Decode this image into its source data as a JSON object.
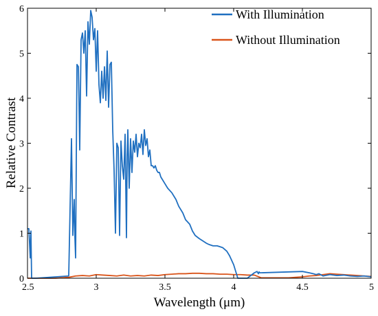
{
  "chart_data": {
    "type": "line",
    "title": "",
    "xlabel": "Wavelength (μm)",
    "ylabel": "Relative Contrast",
    "xlim": [
      2.5,
      5
    ],
    "ylim": [
      0,
      6
    ],
    "x_ticks": [
      "2.5",
      "3",
      "3.5",
      "4",
      "4.5",
      "5"
    ],
    "y_ticks": [
      "0",
      "1",
      "2",
      "3",
      "4",
      "5",
      "6"
    ],
    "grid": false,
    "legend_position": "top-right",
    "series": [
      {
        "name": "With Illumination",
        "color": "#1f6fc0",
        "x": [
          2.5,
          2.51,
          2.52,
          2.525,
          2.53,
          2.54,
          2.55,
          2.56,
          2.8,
          2.82,
          2.83,
          2.84,
          2.845,
          2.85,
          2.86,
          2.87,
          2.875,
          2.88,
          2.89,
          2.9,
          2.91,
          2.92,
          2.93,
          2.94,
          2.95,
          2.96,
          2.97,
          2.98,
          2.99,
          3.0,
          3.01,
          3.02,
          3.03,
          3.04,
          3.05,
          3.06,
          3.07,
          3.08,
          3.09,
          3.1,
          3.11,
          3.12,
          3.13,
          3.14,
          3.15,
          3.16,
          3.17,
          3.18,
          3.19,
          3.2,
          3.21,
          3.22,
          3.225,
          3.23,
          3.24,
          3.25,
          3.26,
          3.27,
          3.28,
          3.29,
          3.3,
          3.31,
          3.32,
          3.33,
          3.34,
          3.35,
          3.36,
          3.37,
          3.38,
          3.39,
          3.4,
          3.41,
          3.42,
          3.43,
          3.44,
          3.45,
          3.46,
          3.47,
          3.48,
          3.5,
          3.52,
          3.55,
          3.58,
          3.6,
          3.63,
          3.65,
          3.68,
          3.7,
          3.72,
          3.75,
          3.78,
          3.8,
          3.82,
          3.85,
          3.88,
          3.9,
          3.92,
          3.95,
          3.97,
          4.0,
          4.03,
          4.05,
          4.08,
          4.1,
          4.12,
          4.15,
          4.17,
          4.18,
          4.185,
          4.19,
          4.5,
          4.55,
          4.58,
          4.6,
          4.62,
          4.65,
          4.7,
          4.75,
          4.8,
          4.85,
          4.9,
          4.95,
          5.0
        ],
        "values": [
          1.1,
          1.1,
          0.45,
          1.05,
          0.0,
          0.0,
          0.0,
          0.0,
          0.05,
          3.1,
          0.95,
          1.75,
          0.9,
          0.45,
          4.75,
          4.7,
          3.9,
          2.85,
          5.3,
          5.45,
          5.0,
          5.5,
          4.05,
          5.7,
          5.2,
          5.95,
          5.8,
          5.3,
          5.55,
          4.6,
          5.5,
          4.3,
          3.9,
          4.6,
          4.0,
          4.7,
          3.95,
          5.05,
          3.8,
          4.75,
          4.8,
          3.3,
          2.4,
          1.0,
          3.0,
          2.9,
          0.95,
          3.05,
          2.5,
          2.2,
          3.2,
          0.9,
          2.7,
          3.3,
          2.0,
          3.1,
          2.35,
          3.05,
          2.8,
          3.2,
          2.7,
          3.0,
          2.9,
          3.2,
          2.75,
          3.3,
          2.95,
          3.1,
          2.7,
          2.85,
          2.5,
          2.5,
          2.45,
          2.5,
          2.4,
          2.35,
          2.35,
          2.25,
          2.2,
          2.1,
          2.0,
          1.9,
          1.75,
          1.6,
          1.45,
          1.3,
          1.2,
          1.05,
          0.95,
          0.88,
          0.82,
          0.78,
          0.75,
          0.72,
          0.72,
          0.7,
          0.68,
          0.6,
          0.5,
          0.3,
          0.0,
          0.0,
          0.0,
          0.0,
          0.05,
          0.12,
          0.15,
          0.1,
          0.14,
          0.12,
          0.15,
          0.12,
          0.1,
          0.08,
          0.1,
          0.05,
          0.08,
          0.06,
          0.07,
          0.05,
          0.04,
          0.05,
          0.03
        ]
      },
      {
        "name": "Without Illumination",
        "color": "#d95319",
        "x": [
          2.5,
          2.6,
          2.7,
          2.8,
          2.85,
          2.9,
          2.95,
          3.0,
          3.05,
          3.1,
          3.15,
          3.2,
          3.25,
          3.3,
          3.35,
          3.4,
          3.45,
          3.5,
          3.55,
          3.6,
          3.65,
          3.7,
          3.75,
          3.8,
          3.85,
          3.9,
          3.95,
          4.0,
          4.05,
          4.1,
          4.15,
          4.2,
          4.3,
          4.4,
          4.45,
          4.5,
          4.55,
          4.6,
          4.65,
          4.7,
          4.75,
          4.8,
          4.85,
          4.9,
          4.95,
          5.0
        ],
        "values": [
          0.0,
          0.0,
          0.0,
          0.02,
          0.05,
          0.06,
          0.05,
          0.08,
          0.07,
          0.06,
          0.05,
          0.07,
          0.05,
          0.06,
          0.05,
          0.07,
          0.06,
          0.08,
          0.09,
          0.1,
          0.1,
          0.11,
          0.11,
          0.1,
          0.1,
          0.09,
          0.09,
          0.08,
          0.08,
          0.07,
          0.07,
          0.01,
          0.01,
          0.01,
          0.02,
          0.03,
          0.05,
          0.06,
          0.08,
          0.1,
          0.09,
          0.08,
          0.07,
          0.06,
          0.05,
          0.04
        ]
      }
    ]
  }
}
